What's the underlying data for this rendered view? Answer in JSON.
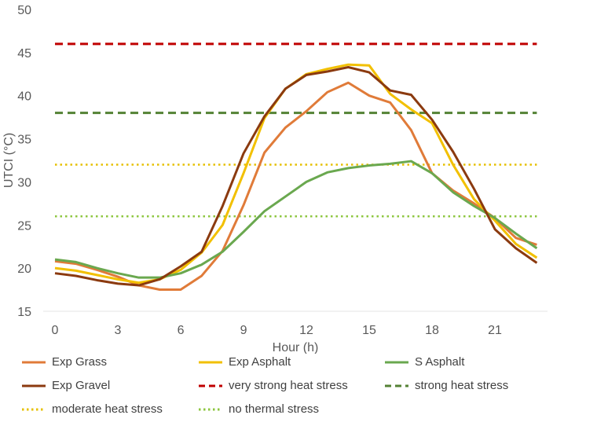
{
  "chart_data": {
    "type": "line",
    "title": "",
    "xlabel": "Hour (h)",
    "ylabel": "UTCI (°C)",
    "xlim": [
      0,
      23
    ],
    "ylim": [
      15,
      50
    ],
    "xticks": [
      0,
      3,
      6,
      9,
      12,
      15,
      18,
      21
    ],
    "yticks": [
      15,
      20,
      25,
      30,
      35,
      40,
      45,
      50
    ],
    "grid": false,
    "legend_position": "bottom",
    "x": [
      0,
      1,
      2,
      3,
      4,
      5,
      6,
      7,
      8,
      9,
      10,
      11,
      12,
      13,
      14,
      15,
      16,
      17,
      18,
      19,
      20,
      21,
      22,
      23
    ],
    "series": [
      {
        "name": "Exp Grass",
        "color": "#E07B39",
        "style": "solid",
        "values": [
          20.8,
          20.5,
          19.8,
          19.0,
          18.0,
          17.5,
          17.5,
          19.1,
          22.0,
          27.3,
          33.4,
          36.3,
          38.2,
          40.4,
          41.5,
          40.0,
          39.2,
          36.0,
          31.0,
          29.0,
          27.5,
          25.8,
          23.5,
          22.7
        ]
      },
      {
        "name": "Exp Asphalt",
        "color": "#F2C000",
        "style": "solid",
        "values": [
          20.0,
          19.7,
          19.2,
          18.7,
          18.3,
          18.7,
          19.8,
          21.8,
          25.0,
          31.0,
          37.4,
          40.8,
          42.5,
          43.1,
          43.6,
          43.5,
          40.2,
          38.4,
          36.8,
          32.0,
          28.0,
          25.5,
          22.8,
          21.2
        ]
      },
      {
        "name": "S Asphalt",
        "color": "#6AA84F",
        "style": "solid",
        "values": [
          21.0,
          20.7,
          20.0,
          19.4,
          18.9,
          18.9,
          19.4,
          20.4,
          21.9,
          24.2,
          26.6,
          28.3,
          30.0,
          31.1,
          31.6,
          31.9,
          32.1,
          32.4,
          31.0,
          28.8,
          27.2,
          25.8,
          24.0,
          22.3
        ]
      },
      {
        "name": "Exp Gravel",
        "color": "#8B3A0F",
        "style": "solid",
        "values": [
          19.4,
          19.1,
          18.6,
          18.2,
          18.0,
          18.7,
          20.2,
          21.9,
          27.2,
          33.3,
          37.6,
          40.8,
          42.4,
          42.8,
          43.3,
          42.7,
          40.6,
          40.1,
          37.2,
          33.5,
          29.2,
          24.5,
          22.3,
          20.6
        ]
      }
    ],
    "thresholds": [
      {
        "name": "very strong heat stress",
        "value": 46,
        "color": "#C00000",
        "style": "dashed"
      },
      {
        "name": "strong heat stress",
        "value": 38,
        "color": "#548235",
        "style": "dashed"
      },
      {
        "name": "moderate heat stress",
        "value": 32,
        "color": "#E6C000",
        "style": "dotted"
      },
      {
        "name": "no thermal stress",
        "value": 26,
        "color": "#8DC63F",
        "style": "dotted"
      }
    ]
  }
}
